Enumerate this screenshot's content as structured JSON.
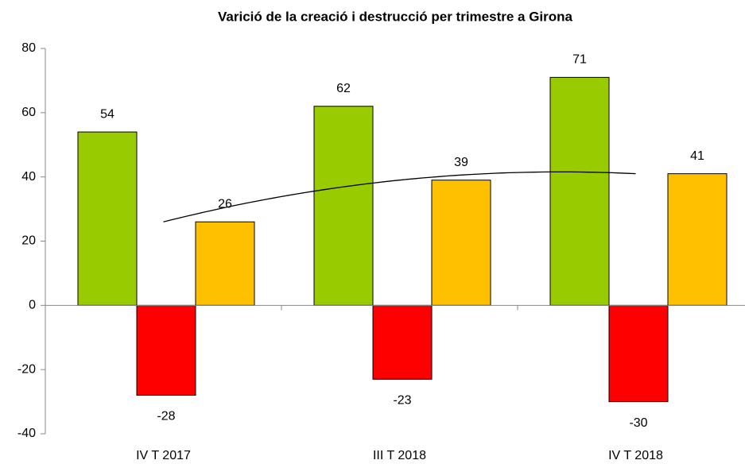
{
  "chart_data": {
    "type": "bar",
    "title": "Varició de la creació i destrucció per trimestre a Girona",
    "categories": [
      "IV T 2017",
      "III T 2018",
      "IV T 2018"
    ],
    "series": [
      {
        "color": "#99cc00",
        "values": [
          54,
          62,
          71
        ]
      },
      {
        "color": "#ff0000",
        "values": [
          -28,
          -23,
          -30
        ]
      },
      {
        "color": "#ffc000",
        "values": [
          26,
          39,
          41
        ]
      }
    ],
    "trendline": "polynomial",
    "ylim": [
      -40,
      80
    ],
    "yticks": [
      -40,
      -20,
      0,
      20,
      40,
      60,
      80
    ],
    "grid": false
  }
}
